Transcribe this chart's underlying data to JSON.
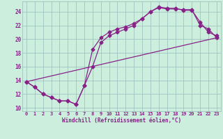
{
  "line1_x": [
    0,
    1,
    2,
    3,
    4,
    5,
    6,
    7,
    8,
    9,
    10,
    11,
    12,
    13,
    14,
    15,
    16,
    17,
    18,
    19,
    20,
    21,
    22,
    23
  ],
  "line1_y": [
    13.8,
    13.0,
    12.0,
    11.5,
    11.0,
    11.0,
    10.5,
    13.2,
    16.0,
    19.5,
    20.5,
    21.0,
    21.5,
    22.0,
    23.0,
    24.0,
    24.7,
    24.5,
    24.5,
    24.2,
    24.2,
    22.5,
    21.0,
    20.5
  ],
  "line2_x": [
    0,
    1,
    2,
    3,
    4,
    5,
    6,
    7,
    8,
    9,
    10,
    11,
    12,
    13,
    14,
    15,
    16,
    17,
    18,
    19,
    20,
    21,
    22,
    23
  ],
  "line2_y": [
    13.8,
    13.0,
    12.0,
    11.5,
    11.0,
    11.0,
    10.5,
    13.2,
    18.5,
    20.2,
    21.0,
    21.5,
    21.8,
    22.3,
    23.0,
    24.0,
    24.6,
    24.4,
    24.4,
    24.3,
    24.3,
    22.0,
    21.5,
    20.2
  ],
  "line3_x": [
    0,
    23
  ],
  "line3_y": [
    13.8,
    20.2
  ],
  "color": "#882288",
  "bg_color": "#cceedd",
  "grid_color": "#99bbbb",
  "xlabel": "Windchill (Refroidissement éolien,°C)",
  "xlim": [
    -0.5,
    23.5
  ],
  "ylim": [
    9.5,
    25.5
  ],
  "yticks": [
    10,
    12,
    14,
    16,
    18,
    20,
    22,
    24
  ],
  "xticks": [
    0,
    1,
    2,
    3,
    4,
    5,
    6,
    7,
    8,
    9,
    10,
    11,
    12,
    13,
    14,
    15,
    16,
    17,
    18,
    19,
    20,
    21,
    22,
    23
  ]
}
